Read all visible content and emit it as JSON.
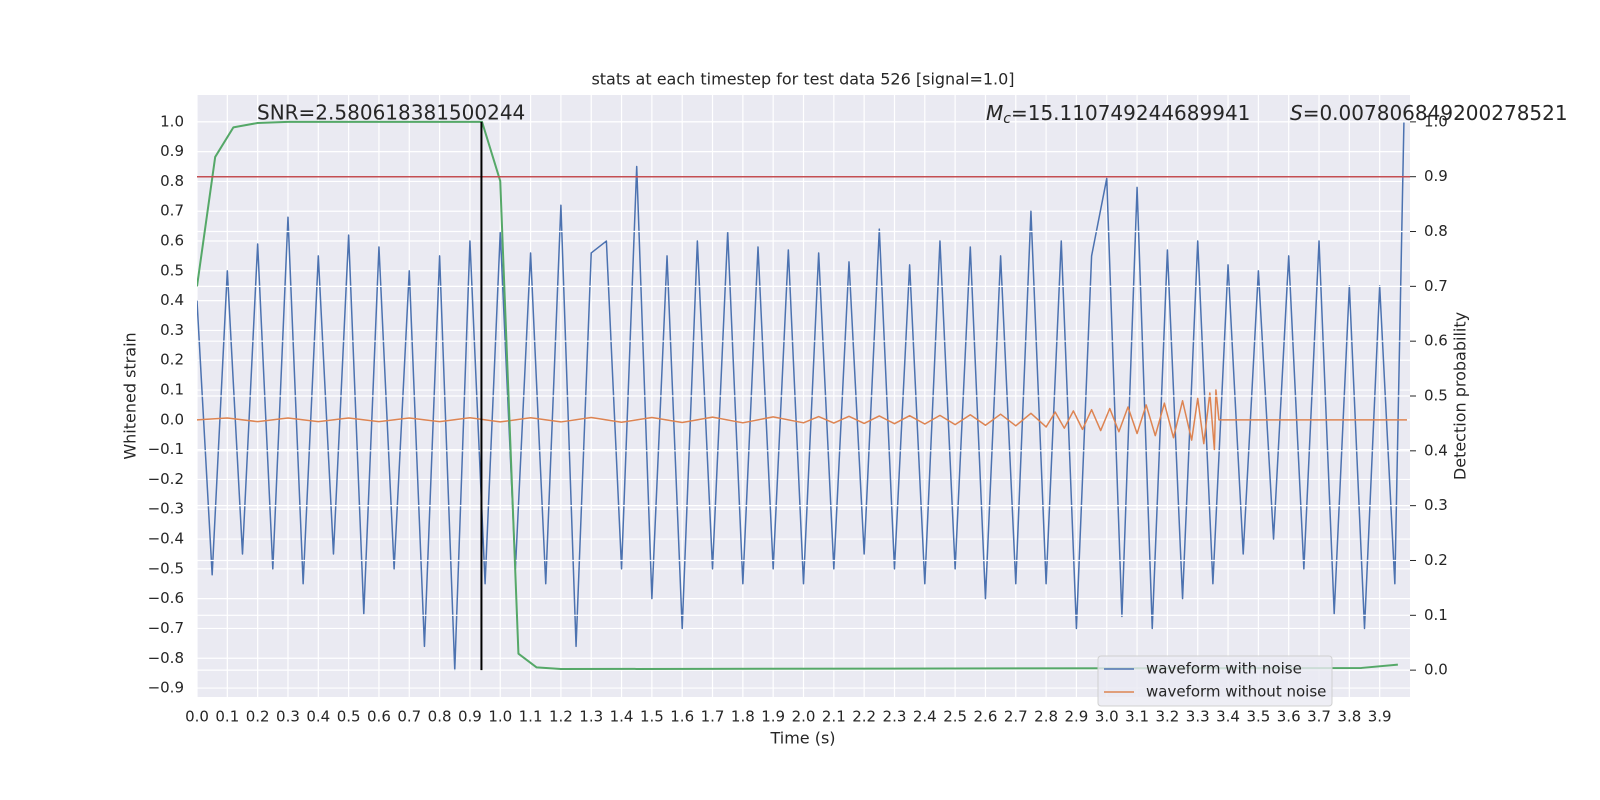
{
  "chart_data": {
    "type": "line",
    "title": "stats at each timestep for test data 526 [signal=1.0]",
    "xlabel": "Time (s)",
    "ylabel": "Whitened strain",
    "y2label": "Detection probability",
    "annotations": {
      "snr": "SNR=2.580618381500244",
      "mc": {
        "symbol": "M",
        "subscript": "c",
        "text": "=15.110749244689941"
      },
      "s": {
        "symbol": "S",
        "text": "=0.007806849200278521"
      }
    },
    "xlim": [
      0,
      4.0
    ],
    "ylim": [
      -0.93,
      1.09
    ],
    "y2lim": [
      -0.049,
      1.049
    ],
    "grid": true,
    "legend": "lower right",
    "xticks": [
      {
        "value": 0,
        "label": "0.0"
      },
      {
        "value": 0.1,
        "label": "0.1"
      },
      {
        "value": 0.2,
        "label": "0.2"
      },
      {
        "value": 0.3,
        "label": "0.3"
      },
      {
        "value": 0.4,
        "label": "0.4"
      },
      {
        "value": 0.5,
        "label": "0.5"
      },
      {
        "value": 0.6,
        "label": "0.6"
      },
      {
        "value": 0.7,
        "label": "0.7"
      },
      {
        "value": 0.8,
        "label": "0.8"
      },
      {
        "value": 0.9,
        "label": "0.9"
      },
      {
        "value": 1,
        "label": "1.0"
      },
      {
        "value": 1.1,
        "label": "1.1"
      },
      {
        "value": 1.2,
        "label": "1.2"
      },
      {
        "value": 1.3,
        "label": "1.3"
      },
      {
        "value": 1.4,
        "label": "1.4"
      },
      {
        "value": 1.5,
        "label": "1.5"
      },
      {
        "value": 1.6,
        "label": "1.6"
      },
      {
        "value": 1.7,
        "label": "1.7"
      },
      {
        "value": 1.8,
        "label": "1.8"
      },
      {
        "value": 1.9,
        "label": "1.9"
      },
      {
        "value": 2,
        "label": "2.0"
      },
      {
        "value": 2.1,
        "label": "2.1"
      },
      {
        "value": 2.2,
        "label": "2.2"
      },
      {
        "value": 2.3,
        "label": "2.3"
      },
      {
        "value": 2.4,
        "label": "2.4"
      },
      {
        "value": 2.5,
        "label": "2.5"
      },
      {
        "value": 2.6,
        "label": "2.6"
      },
      {
        "value": 2.7,
        "label": "2.7"
      },
      {
        "value": 2.8,
        "label": "2.8"
      },
      {
        "value": 2.9,
        "label": "2.9"
      },
      {
        "value": 3,
        "label": "3.0"
      },
      {
        "value": 3.1,
        "label": "3.1"
      },
      {
        "value": 3.2,
        "label": "3.2"
      },
      {
        "value": 3.3,
        "label": "3.3"
      },
      {
        "value": 3.4,
        "label": "3.4"
      },
      {
        "value": 3.5,
        "label": "3.5"
      },
      {
        "value": 3.6,
        "label": "3.6"
      },
      {
        "value": 3.7,
        "label": "3.7"
      },
      {
        "value": 3.8,
        "label": "3.8"
      },
      {
        "value": 3.9,
        "label": "3.9"
      }
    ],
    "yticks": [
      {
        "value": -0.9,
        "label": "−0.9"
      },
      {
        "value": -0.8,
        "label": "−0.8"
      },
      {
        "value": -0.7,
        "label": "−0.7"
      },
      {
        "value": -0.6,
        "label": "−0.6"
      },
      {
        "value": -0.5,
        "label": "−0.5"
      },
      {
        "value": -0.4,
        "label": "−0.4"
      },
      {
        "value": -0.3,
        "label": "−0.3"
      },
      {
        "value": -0.2,
        "label": "−0.2"
      },
      {
        "value": -0.1,
        "label": "−0.1"
      },
      {
        "value": 0,
        "label": "0.0"
      },
      {
        "value": 0.1,
        "label": "0.1"
      },
      {
        "value": 0.2,
        "label": "0.2"
      },
      {
        "value": 0.3,
        "label": "0.3"
      },
      {
        "value": 0.4,
        "label": "0.4"
      },
      {
        "value": 0.5,
        "label": "0.5"
      },
      {
        "value": 0.6,
        "label": "0.6"
      },
      {
        "value": 0.7,
        "label": "0.7"
      },
      {
        "value": 0.8,
        "label": "0.8"
      },
      {
        "value": 0.9,
        "label": "0.9"
      },
      {
        "value": 1,
        "label": "1.0"
      }
    ],
    "y2ticks": [
      {
        "value": 0,
        "label": "0.0"
      },
      {
        "value": 0.1,
        "label": "0.1"
      },
      {
        "value": 0.2,
        "label": "0.2"
      },
      {
        "value": 0.3,
        "label": "0.3"
      },
      {
        "value": 0.4,
        "label": "0.4"
      },
      {
        "value": 0.5,
        "label": "0.5"
      },
      {
        "value": 0.6,
        "label": "0.6"
      },
      {
        "value": 0.7,
        "label": "0.7"
      },
      {
        "value": 0.8,
        "label": "0.8"
      },
      {
        "value": 0.9,
        "label": "0.9"
      },
      {
        "value": 1,
        "label": "1.0"
      }
    ],
    "series": [
      {
        "name": "waveform with noise",
        "color": "#4c72b0",
        "x": [
          0,
          0.05,
          0.1,
          0.15,
          0.2,
          0.25,
          0.3,
          0.35,
          0.4,
          0.45,
          0.5,
          0.55,
          0.6,
          0.65,
          0.7,
          0.75,
          0.8,
          0.85,
          0.9,
          0.95,
          1,
          1.05,
          1.1,
          1.15,
          1.2,
          1.25,
          1.3,
          1.35,
          1.4,
          1.45,
          1.5,
          1.55,
          1.6,
          1.65,
          1.7,
          1.75,
          1.8,
          1.85,
          1.9,
          1.95,
          2,
          2.05,
          2.1,
          2.15,
          2.2,
          2.25,
          2.3,
          2.35,
          2.4,
          2.45,
          2.5,
          2.55,
          2.6,
          2.65,
          2.7,
          2.75,
          2.8,
          2.85,
          2.9,
          2.95,
          3,
          3.05,
          3.1,
          3.15,
          3.2,
          3.25,
          3.3,
          3.35,
          3.4,
          3.45,
          3.5,
          3.55,
          3.6,
          3.65,
          3.7,
          3.75,
          3.8,
          3.85,
          3.9,
          3.95,
          3.98
        ],
        "values": [
          0.4,
          -0.52,
          0.5,
          -0.45,
          0.59,
          -0.5,
          0.68,
          -0.55,
          0.55,
          -0.45,
          0.62,
          -0.65,
          0.58,
          -0.5,
          0.5,
          -0.76,
          0.55,
          -0.84,
          0.6,
          -0.55,
          0.63,
          -0.5,
          0.56,
          -0.55,
          0.72,
          -0.76,
          0.56,
          0.6,
          -0.5,
          0.85,
          -0.6,
          0.55,
          -0.7,
          0.6,
          -0.5,
          0.63,
          -0.55,
          0.58,
          -0.5,
          0.57,
          -0.55,
          0.56,
          -0.5,
          0.53,
          -0.45,
          0.64,
          -0.5,
          0.52,
          -0.55,
          0.6,
          -0.5,
          0.58,
          -0.6,
          0.55,
          -0.55,
          0.7,
          -0.55,
          0.6,
          -0.7,
          0.55,
          0.81,
          -0.66,
          0.78,
          -0.7,
          0.57,
          -0.6,
          0.6,
          -0.55,
          0.52,
          -0.45,
          0.5,
          -0.4,
          0.55,
          -0.5,
          0.6,
          -0.65,
          0.45,
          -0.7,
          0.45,
          -0.55,
          1.0
        ]
      },
      {
        "name": "waveform without noise",
        "color": "#dd8452",
        "x": [
          0,
          0.1,
          0.2,
          0.3,
          0.4,
          0.5,
          0.6,
          0.7,
          0.8,
          0.9,
          1,
          1.1,
          1.2,
          1.3,
          1.4,
          1.5,
          1.6,
          1.7,
          1.8,
          1.9,
          2,
          2.05,
          2.1,
          2.15,
          2.2,
          2.25,
          2.3,
          2.35,
          2.4,
          2.45,
          2.5,
          2.55,
          2.6,
          2.65,
          2.7,
          2.75,
          2.8,
          2.83,
          2.86,
          2.89,
          2.92,
          2.95,
          2.98,
          3.01,
          3.04,
          3.07,
          3.1,
          3.13,
          3.16,
          3.19,
          3.22,
          3.25,
          3.28,
          3.3,
          3.32,
          3.34,
          3.355,
          3.36,
          3.37,
          3.99
        ],
        "values": [
          0,
          0.006,
          -0.006,
          0.006,
          -0.006,
          0.006,
          -0.006,
          0.006,
          -0.006,
          0.007,
          -0.007,
          0.007,
          -0.007,
          0.008,
          -0.008,
          0.008,
          -0.009,
          0.009,
          -0.01,
          0.01,
          -0.01,
          0.011,
          -0.011,
          0.012,
          -0.012,
          0.013,
          -0.013,
          0.014,
          -0.014,
          0.015,
          -0.016,
          0.017,
          -0.018,
          0.019,
          -0.02,
          0.022,
          -0.024,
          0.026,
          -0.028,
          0.03,
          -0.032,
          0.034,
          -0.036,
          0.038,
          -0.04,
          0.043,
          -0.046,
          0.05,
          -0.053,
          0.056,
          -0.06,
          0.064,
          -0.068,
          0.072,
          -0.08,
          0.09,
          -0.1,
          0.1,
          0,
          0
        ]
      },
      {
        "color": "#55a868",
        "axis": "y2",
        "x": [
          0,
          0.06,
          0.12,
          0.2,
          0.3,
          0.94,
          1,
          1.06,
          1.12,
          1.2,
          3.84,
          3.96
        ],
        "values": [
          0.7,
          0.936,
          0.99,
          0.998,
          1.0,
          1.0,
          0.892,
          0.03,
          0.005,
          0.002,
          0.004,
          0.01
        ]
      }
    ],
    "threshold": {
      "value": 0.9,
      "color": "#c44e52",
      "axis": "y2"
    },
    "marker_line": {
      "x": 0.938,
      "y2_range": [
        0,
        1
      ],
      "color": "#000000"
    }
  }
}
